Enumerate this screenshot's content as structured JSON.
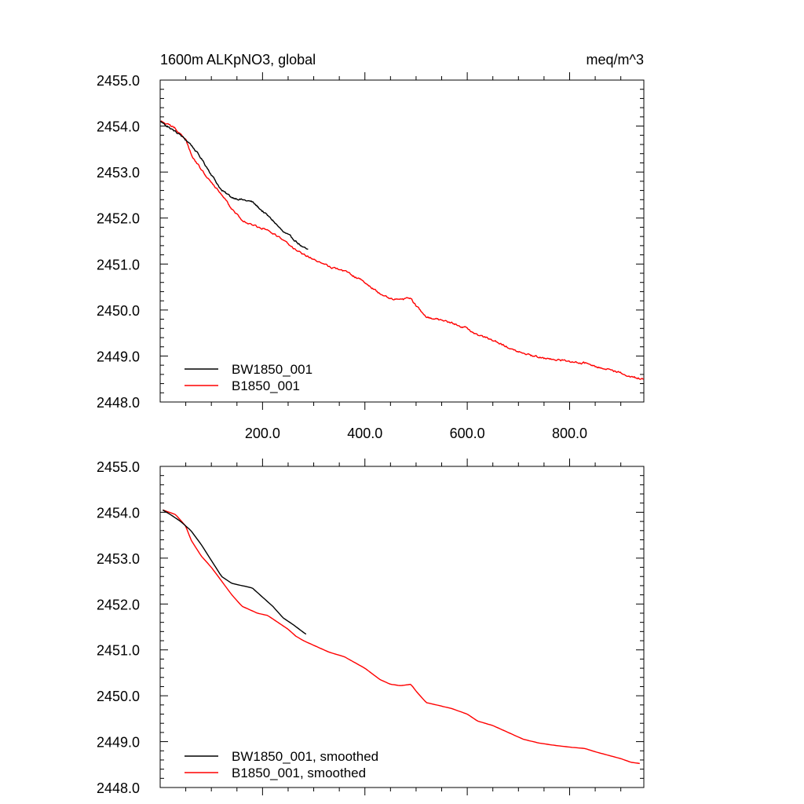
{
  "chart_data": [
    {
      "type": "line",
      "title_left": "1600m ALKpNO3, global",
      "title_right": "meq/m^3",
      "xlim": [
        0,
        945
      ],
      "ylim": [
        2448.0,
        2455.0
      ],
      "x_ticks": [
        200,
        400,
        600,
        800
      ],
      "x_tick_labels": [
        "200.0",
        "400.0",
        "600.0",
        "800.0"
      ],
      "y_ticks": [
        2448,
        2449,
        2450,
        2451,
        2452,
        2453,
        2454,
        2455
      ],
      "y_tick_labels": [
        "2448.0",
        "2449.0",
        "2450.0",
        "2451.0",
        "2452.0",
        "2453.0",
        "2454.0",
        "2455.0"
      ],
      "legend_position": "bottom-left",
      "series": [
        {
          "name": "BW1850_001",
          "color": "#000000",
          "noise": 0.035,
          "x": [
            1,
            20,
            40,
            60,
            80,
            100,
            120,
            140,
            160,
            180,
            200,
            220,
            240,
            260,
            280,
            290
          ],
          "y": [
            2454.1,
            2453.95,
            2453.8,
            2453.6,
            2453.3,
            2452.95,
            2452.6,
            2452.45,
            2452.4,
            2452.35,
            2452.15,
            2451.95,
            2451.7,
            2451.55,
            2451.35,
            2451.3
          ]
        },
        {
          "name": "B1850_001",
          "color": "#ff0000",
          "noise": 0.035,
          "x": [
            1,
            30,
            50,
            60,
            80,
            100,
            120,
            140,
            160,
            170,
            190,
            210,
            230,
            250,
            265,
            280,
            300,
            330,
            360,
            400,
            430,
            450,
            470,
            490,
            500,
            520,
            540,
            570,
            600,
            620,
            650,
            680,
            710,
            740,
            770,
            800,
            830,
            850,
            870,
            900,
            920,
            945
          ],
          "y": [
            2454.1,
            2453.95,
            2453.7,
            2453.4,
            2453.05,
            2452.8,
            2452.5,
            2452.2,
            2451.95,
            2451.9,
            2451.8,
            2451.75,
            2451.6,
            2451.45,
            2451.3,
            2451.2,
            2451.1,
            2450.95,
            2450.85,
            2450.6,
            2450.35,
            2450.25,
            2450.22,
            2450.25,
            2450.1,
            2449.85,
            2449.8,
            2449.72,
            2449.6,
            2449.45,
            2449.35,
            2449.2,
            2449.05,
            2448.97,
            2448.92,
            2448.88,
            2448.85,
            2448.78,
            2448.72,
            2448.63,
            2448.55,
            2448.5
          ]
        }
      ]
    },
    {
      "type": "line",
      "xlim": [
        0,
        945
      ],
      "ylim": [
        2448.0,
        2455.0
      ],
      "x_ticks": [
        200,
        400,
        600,
        800
      ],
      "y_ticks": [
        2448,
        2449,
        2450,
        2451,
        2452,
        2453,
        2454,
        2455
      ],
      "y_tick_labels": [
        "2448.0",
        "2449.0",
        "2450.0",
        "2451.0",
        "2452.0",
        "2453.0",
        "2454.0",
        "2455.0"
      ],
      "legend_position": "bottom-left",
      "series": [
        {
          "name": "BW1850_001, smoothed",
          "color": "#000000",
          "noise": 0,
          "x": [
            5,
            20,
            40,
            60,
            80,
            100,
            120,
            140,
            160,
            180,
            200,
            220,
            240,
            260,
            280,
            288
          ],
          "y": [
            2454.05,
            2453.95,
            2453.8,
            2453.6,
            2453.3,
            2452.95,
            2452.6,
            2452.45,
            2452.4,
            2452.35,
            2452.15,
            2451.95,
            2451.7,
            2451.55,
            2451.38,
            2451.32
          ]
        },
        {
          "name": "B1850_001, smoothed",
          "color": "#ff0000",
          "noise": 0,
          "x": [
            5,
            30,
            50,
            60,
            80,
            100,
            120,
            140,
            160,
            170,
            190,
            210,
            230,
            250,
            265,
            280,
            300,
            330,
            360,
            400,
            430,
            450,
            470,
            490,
            500,
            520,
            540,
            570,
            600,
            620,
            650,
            680,
            710,
            740,
            770,
            800,
            830,
            850,
            870,
            900,
            920,
            940
          ],
          "y": [
            2454.05,
            2453.95,
            2453.7,
            2453.4,
            2453.05,
            2452.8,
            2452.5,
            2452.2,
            2451.95,
            2451.9,
            2451.8,
            2451.75,
            2451.6,
            2451.45,
            2451.3,
            2451.2,
            2451.1,
            2450.95,
            2450.85,
            2450.6,
            2450.35,
            2450.25,
            2450.22,
            2450.25,
            2450.1,
            2449.85,
            2449.8,
            2449.72,
            2449.6,
            2449.45,
            2449.35,
            2449.2,
            2449.05,
            2448.97,
            2448.92,
            2448.88,
            2448.85,
            2448.78,
            2448.72,
            2448.63,
            2448.55,
            2448.52
          ]
        }
      ]
    }
  ]
}
